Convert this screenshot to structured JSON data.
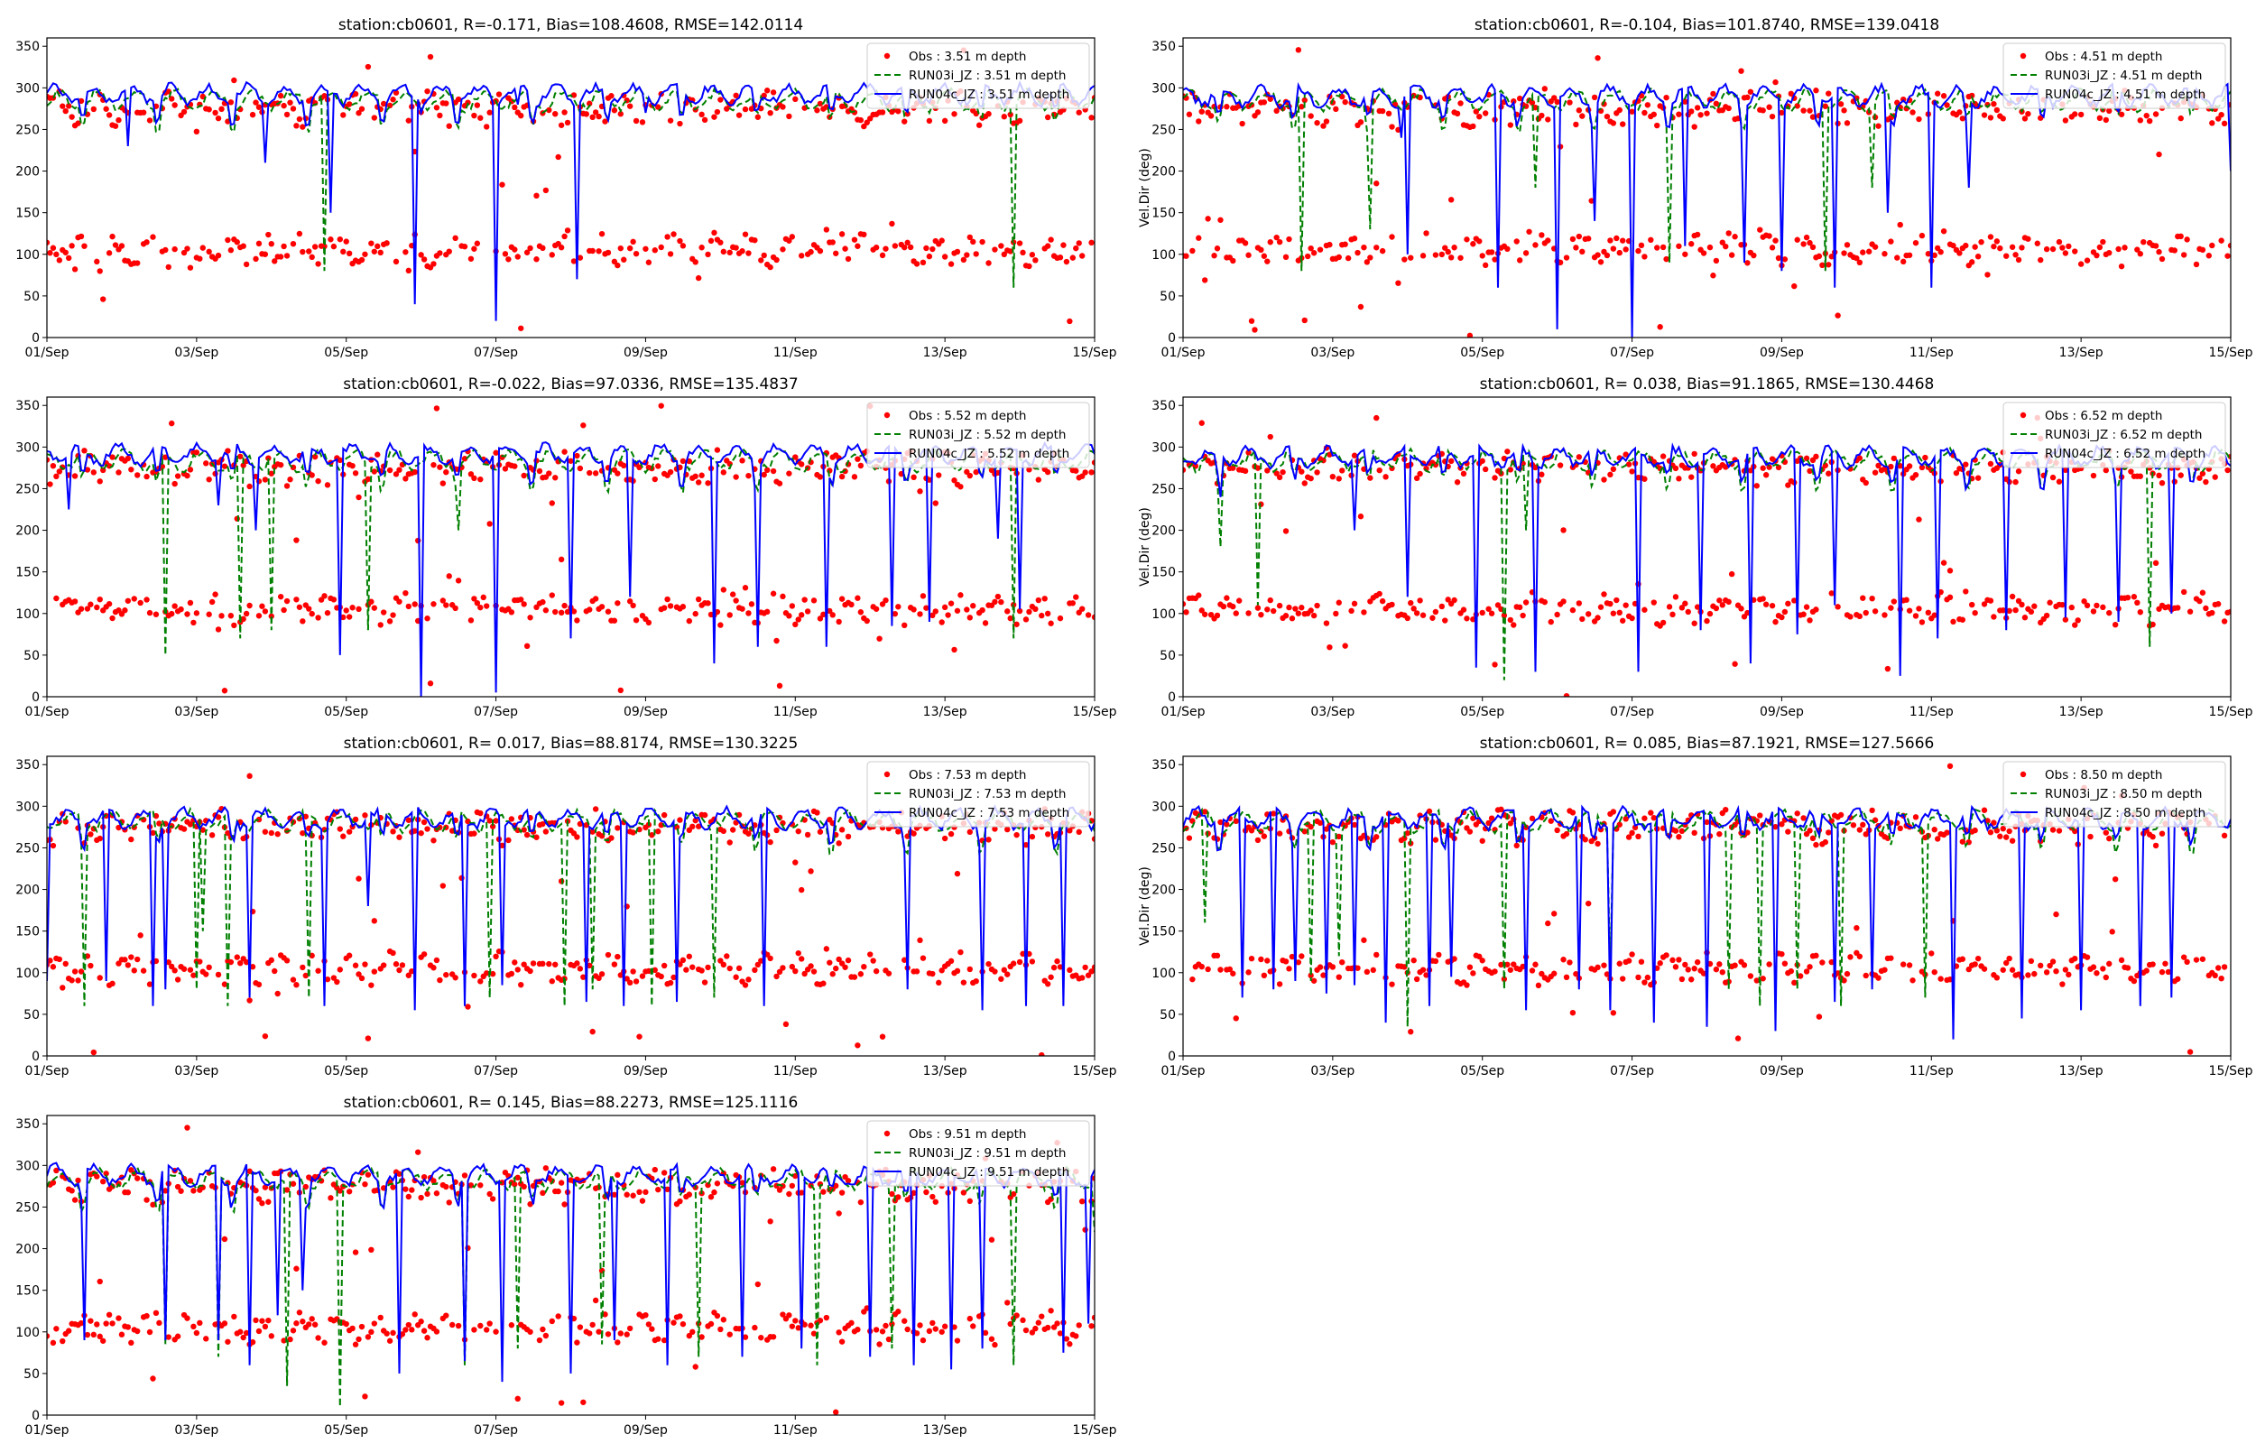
{
  "chart_data": [
    {
      "type": "scatter+line",
      "title": "station:cb0601, R=-0.171, Bias=108.4608, RMSE=142.0114",
      "ylabel": "",
      "ylim": [
        0,
        360
      ],
      "yticks": [
        "0",
        "50",
        "100",
        "150",
        "200",
        "250",
        "300",
        "350"
      ],
      "xticks": [
        "01/Sep",
        "03/Sep",
        "05/Sep",
        "07/Sep",
        "09/Sep",
        "11/Sep",
        "13/Sep",
        "15/Sep"
      ],
      "xlim_days": [
        0,
        14
      ],
      "legend": "top-right",
      "series": [
        {
          "name": "Obs : 3.51 m depth",
          "style": "red-dots",
          "upper_mean": 275,
          "lower_mean": 105
        },
        {
          "name": "RUN03i_JZ : 3.51 m depth",
          "style": "green-dashed",
          "baseline": 285,
          "spikes_to": [
            [
              3.7,
              80
            ],
            [
              12.9,
              60
            ]
          ]
        },
        {
          "name": "RUN04c_JZ : 3.51 m depth",
          "style": "blue-solid",
          "baseline": 292,
          "spikes_to": [
            [
              1.1,
              230
            ],
            [
              2.9,
              210
            ],
            [
              3.8,
              150
            ],
            [
              4.9,
              40
            ],
            [
              5.0,
              270
            ],
            [
              6.0,
              20
            ],
            [
              6.3,
              280
            ],
            [
              7.1,
              70
            ],
            [
              8.0,
              270
            ]
          ]
        }
      ]
    },
    {
      "type": "scatter+line",
      "title": "station:cb0601, R=-0.104, Bias=101.8740, RMSE=139.0418",
      "ylabel": "Vel.Dir (deg)",
      "ylim": [
        0,
        360
      ],
      "yticks": [
        "0",
        "50",
        "100",
        "150",
        "200",
        "250",
        "300",
        "350"
      ],
      "xticks": [
        "01/Sep",
        "03/Sep",
        "05/Sep",
        "07/Sep",
        "09/Sep",
        "11/Sep",
        "13/Sep",
        "15/Sep"
      ],
      "xlim_days": [
        0,
        14
      ],
      "legend": "top-right",
      "series": [
        {
          "name": "Obs : 4.51 m depth",
          "style": "red-dots",
          "upper_mean": 275,
          "lower_mean": 105
        },
        {
          "name": "RUN03i_JZ : 4.51 m depth",
          "style": "green-dashed",
          "baseline": 285,
          "spikes_to": [
            [
              1.6,
              80
            ],
            [
              2.5,
              130
            ],
            [
              4.7,
              180
            ],
            [
              6.5,
              90
            ],
            [
              8.6,
              80
            ],
            [
              9.2,
              180
            ]
          ]
        },
        {
          "name": "RUN04c_JZ : 4.51 m depth",
          "style": "blue-solid",
          "baseline": 290,
          "spikes_to": [
            [
              2.9,
              240
            ],
            [
              3.0,
              100
            ],
            [
              4.2,
              60
            ],
            [
              5.0,
              10
            ],
            [
              5.5,
              140
            ],
            [
              6.0,
              0
            ],
            [
              6.7,
              110
            ],
            [
              7.5,
              90
            ],
            [
              8.0,
              80
            ],
            [
              8.7,
              60
            ],
            [
              9.4,
              150
            ],
            [
              10.0,
              60
            ],
            [
              10.5,
              180
            ],
            [
              14.0,
              200
            ]
          ]
        }
      ]
    },
    {
      "type": "scatter+line",
      "title": "station:cb0601, R=-0.022, Bias=97.0336, RMSE=135.4837",
      "ylabel": "",
      "ylim": [
        0,
        360
      ],
      "yticks": [
        "0",
        "50",
        "100",
        "150",
        "200",
        "250",
        "300",
        "350"
      ],
      "xticks": [
        "01/Sep",
        "03/Sep",
        "05/Sep",
        "07/Sep",
        "09/Sep",
        "11/Sep",
        "13/Sep",
        "15/Sep"
      ],
      "xlim_days": [
        0,
        14
      ],
      "legend": "top-right",
      "series": [
        {
          "name": "Obs : 5.52 m depth",
          "style": "red-dots",
          "upper_mean": 275,
          "lower_mean": 105
        },
        {
          "name": "RUN03i_JZ : 5.52 m depth",
          "style": "green-dashed",
          "baseline": 284,
          "spikes_to": [
            [
              1.6,
              50
            ],
            [
              2.6,
              70
            ],
            [
              3.0,
              80
            ],
            [
              4.3,
              80
            ],
            [
              5.5,
              200
            ],
            [
              12.9,
              70
            ]
          ]
        },
        {
          "name": "RUN04c_JZ : 5.52 m depth",
          "style": "blue-solid",
          "baseline": 291,
          "spikes_to": [
            [
              0.3,
              225
            ],
            [
              2.3,
              230
            ],
            [
              2.8,
              200
            ],
            [
              3.9,
              50
            ],
            [
              5.0,
              0
            ],
            [
              6.0,
              5
            ],
            [
              7.0,
              70
            ],
            [
              7.8,
              120
            ],
            [
              8.9,
              40
            ],
            [
              9.5,
              60
            ],
            [
              10.4,
              60
            ],
            [
              11.3,
              85
            ],
            [
              11.8,
              90
            ],
            [
              12.7,
              190
            ],
            [
              13.0,
              105
            ]
          ]
        }
      ]
    },
    {
      "type": "scatter+line",
      "title": "station:cb0601, R= 0.038, Bias=91.1865, RMSE=130.4468",
      "ylabel": "Vel.Dir (deg)",
      "ylim": [
        0,
        360
      ],
      "yticks": [
        "0",
        "50",
        "100",
        "150",
        "200",
        "250",
        "300",
        "350"
      ],
      "xticks": [
        "01/Sep",
        "03/Sep",
        "05/Sep",
        "07/Sep",
        "09/Sep",
        "11/Sep",
        "13/Sep",
        "15/Sep"
      ],
      "xlim_days": [
        0,
        14
      ],
      "legend": "top-right",
      "series": [
        {
          "name": "Obs : 6.52 m depth",
          "style": "red-dots",
          "upper_mean": 275,
          "lower_mean": 105
        },
        {
          "name": "RUN03i_JZ : 6.52 m depth",
          "style": "green-dashed",
          "baseline": 284,
          "spikes_to": [
            [
              0.5,
              180
            ],
            [
              1.0,
              110
            ],
            [
              4.3,
              20
            ],
            [
              4.6,
              200
            ],
            [
              12.9,
              60
            ]
          ]
        },
        {
          "name": "RUN04c_JZ : 6.52 m depth",
          "style": "blue-solid",
          "baseline": 288,
          "spikes_to": [
            [
              0.5,
              240
            ],
            [
              2.3,
              200
            ],
            [
              3.0,
              120
            ],
            [
              3.9,
              35
            ],
            [
              4.7,
              30
            ],
            [
              6.1,
              30
            ],
            [
              6.9,
              80
            ],
            [
              7.6,
              40
            ],
            [
              8.2,
              75
            ],
            [
              8.7,
              110
            ],
            [
              9.6,
              25
            ],
            [
              10.1,
              70
            ],
            [
              11.0,
              80
            ],
            [
              11.8,
              95
            ],
            [
              12.5,
              90
            ],
            [
              13.2,
              100
            ]
          ]
        }
      ]
    },
    {
      "type": "scatter+line",
      "title": "station:cb0601, R= 0.017, Bias=88.8174, RMSE=130.3225",
      "ylabel": "",
      "ylim": [
        0,
        360
      ],
      "yticks": [
        "0",
        "50",
        "100",
        "150",
        "200",
        "250",
        "300",
        "350"
      ],
      "xticks": [
        "01/Sep",
        "03/Sep",
        "05/Sep",
        "07/Sep",
        "09/Sep",
        "11/Sep",
        "13/Sep",
        "15/Sep"
      ],
      "xlim_days": [
        0,
        14
      ],
      "legend": "top-right",
      "series": [
        {
          "name": "Obs : 7.53 m depth",
          "style": "red-dots",
          "upper_mean": 275,
          "lower_mean": 105
        },
        {
          "name": "RUN03i_JZ : 7.53 m depth",
          "style": "green-dashed",
          "baseline": 282,
          "spikes_to": [
            [
              0.5,
              230
            ],
            [
              0.5,
              60
            ],
            [
              2.0,
              80
            ],
            [
              2.1,
              150
            ],
            [
              2.4,
              60
            ],
            [
              3.5,
              70
            ],
            [
              5.9,
              70
            ],
            [
              6.9,
              60
            ],
            [
              7.3,
              80
            ],
            [
              8.1,
              60
            ],
            [
              8.9,
              70
            ]
          ]
        },
        {
          "name": "RUN04c_JZ : 7.53 m depth",
          "style": "blue-solid",
          "baseline": 285,
          "spikes_to": [
            [
              0.0,
              90
            ],
            [
              0.8,
              90
            ],
            [
              1.4,
              60
            ],
            [
              1.6,
              80
            ],
            [
              2.7,
              70
            ],
            [
              3.7,
              60
            ],
            [
              4.3,
              180
            ],
            [
              4.9,
              55
            ],
            [
              5.6,
              60
            ],
            [
              6.1,
              85
            ],
            [
              7.2,
              65
            ],
            [
              7.7,
              60
            ],
            [
              8.4,
              65
            ],
            [
              9.6,
              60
            ],
            [
              11.5,
              80
            ],
            [
              12.5,
              55
            ],
            [
              13.1,
              60
            ],
            [
              13.6,
              60
            ]
          ]
        }
      ]
    },
    {
      "type": "scatter+line",
      "title": "station:cb0601, R= 0.085, Bias=87.1921, RMSE=127.5666",
      "ylabel": "Vel.Dir (deg)",
      "ylim": [
        0,
        360
      ],
      "yticks": [
        "0",
        "50",
        "100",
        "150",
        "200",
        "250",
        "300",
        "350"
      ],
      "xticks": [
        "01/Sep",
        "03/Sep",
        "05/Sep",
        "07/Sep",
        "09/Sep",
        "11/Sep",
        "13/Sep",
        "15/Sep"
      ],
      "xlim_days": [
        0,
        14
      ],
      "legend": "top-right",
      "series": [
        {
          "name": "Obs : 8.50 m depth",
          "style": "red-dots",
          "upper_mean": 275,
          "lower_mean": 105
        },
        {
          "name": "RUN03i_JZ : 8.50 m depth",
          "style": "green-dashed",
          "baseline": 282,
          "spikes_to": [
            [
              0.3,
              160
            ],
            [
              1.7,
              90
            ],
            [
              2.1,
              120
            ],
            [
              3.0,
              35
            ],
            [
              4.3,
              80
            ],
            [
              5.7,
              100
            ],
            [
              7.3,
              80
            ],
            [
              7.7,
              60
            ],
            [
              8.2,
              80
            ],
            [
              8.8,
              60
            ],
            [
              9.9,
              70
            ]
          ]
        },
        {
          "name": "RUN04c_JZ : 8.50 m depth",
          "style": "blue-solid",
          "baseline": 285,
          "spikes_to": [
            [
              0.8,
              70
            ],
            [
              1.2,
              80
            ],
            [
              1.5,
              90
            ],
            [
              1.9,
              75
            ],
            [
              2.3,
              85
            ],
            [
              2.7,
              40
            ],
            [
              3.3,
              60
            ],
            [
              3.6,
              95
            ],
            [
              4.6,
              55
            ],
            [
              5.3,
              80
            ],
            [
              5.7,
              55
            ],
            [
              6.3,
              40
            ],
            [
              7.0,
              35
            ],
            [
              7.9,
              30
            ],
            [
              8.7,
              65
            ],
            [
              9.2,
              80
            ],
            [
              10.3,
              20
            ],
            [
              11.2,
              45
            ],
            [
              12.0,
              55
            ],
            [
              12.8,
              60
            ],
            [
              13.2,
              70
            ]
          ]
        }
      ]
    },
    {
      "type": "scatter+line",
      "title": "station:cb0601, R= 0.145, Bias=88.2273, RMSE=125.1116",
      "ylabel": "",
      "ylim": [
        0,
        360
      ],
      "yticks": [
        "0",
        "50",
        "100",
        "150",
        "200",
        "250",
        "300",
        "350"
      ],
      "xticks": [
        "01/Sep",
        "03/Sep",
        "05/Sep",
        "07/Sep",
        "09/Sep",
        "11/Sep",
        "13/Sep",
        "15/Sep"
      ],
      "xlim_days": [
        0,
        14
      ],
      "legend": "top-right",
      "series": [
        {
          "name": "Obs : 9.51 m depth",
          "style": "red-dots",
          "upper_mean": 275,
          "lower_mean": 105
        },
        {
          "name": "RUN03i_JZ : 9.51 m depth",
          "style": "green-dashed",
          "baseline": 283,
          "spikes_to": [
            [
              1.6,
              85
            ],
            [
              2.3,
              70
            ],
            [
              3.2,
              35
            ],
            [
              3.9,
              10
            ],
            [
              5.6,
              60
            ],
            [
              6.3,
              80
            ],
            [
              7.4,
              85
            ],
            [
              8.7,
              70
            ],
            [
              10.3,
              60
            ],
            [
              11.3,
              80
            ],
            [
              12.9,
              60
            ],
            [
              14.0,
              220
            ]
          ]
        },
        {
          "name": "RUN04c_JZ : 9.51 m depth",
          "style": "blue-solid",
          "baseline": 288,
          "spikes_to": [
            [
              0.5,
              90
            ],
            [
              1.6,
              90
            ],
            [
              2.3,
              90
            ],
            [
              2.7,
              60
            ],
            [
              3.1,
              120
            ],
            [
              3.4,
              150
            ],
            [
              4.7,
              50
            ],
            [
              5.6,
              65
            ],
            [
              6.1,
              40
            ],
            [
              7.0,
              50
            ],
            [
              7.6,
              90
            ],
            [
              8.3,
              60
            ],
            [
              9.3,
              70
            ],
            [
              10.1,
              80
            ],
            [
              11.0,
              70
            ],
            [
              11.6,
              60
            ],
            [
              12.1,
              55
            ],
            [
              12.5,
              80
            ],
            [
              13.6,
              75
            ],
            [
              13.9,
              110
            ]
          ]
        }
      ]
    }
  ]
}
